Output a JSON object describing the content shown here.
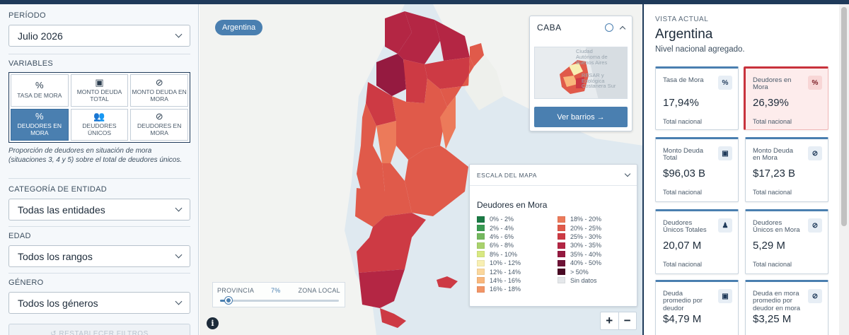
{
  "sidebar": {
    "periodo_label": "PERÍODO",
    "periodo_value": "Julio 2026",
    "variables_label": "VARIABLES",
    "variables": [
      {
        "icon": "percent-icon",
        "glyph": "%",
        "label": "TASA DE MORA",
        "active": false
      },
      {
        "icon": "money-icon",
        "glyph": "▣",
        "label": "MONTO DEUDA TOTAL",
        "active": false
      },
      {
        "icon": "money-off-icon",
        "glyph": "⊘",
        "label": "MONTO DEUDA EN MORA",
        "active": false
      },
      {
        "icon": "percent-icon",
        "glyph": "%",
        "label": "DEUDORES EN MORA",
        "active": true
      },
      {
        "icon": "users-icon",
        "glyph": "👥",
        "label": "DEUDORES ÚNICOS",
        "active": false
      },
      {
        "icon": "user-off-icon",
        "glyph": "⊘",
        "label": "DEUDORES EN MORA",
        "active": false
      }
    ],
    "description": "Proporción de deudores en situación de mora (situaciones 3, 4 y 5) sobre el total de deudores únicos.",
    "entidad_label": "CATEGORÍA DE ENTIDAD",
    "entidad_value": "Todas las entidades",
    "edad_label": "EDAD",
    "edad_value": "Todos los rangos",
    "genero_label": "GÉNERO",
    "genero_value": "Todos los géneros",
    "reset_label": "↺ RESTABLECER FILTROS"
  },
  "map": {
    "chip": "Argentina",
    "caba": {
      "title": "CABA",
      "button": "Ver barrios  →",
      "minimap_text": [
        "Ciudad",
        "Autónoma de",
        "Buenos Aires",
        "RESAR y",
        "Ecológica",
        "Costanera Sur"
      ]
    },
    "legend": {
      "header": "ESCALA DEL MAPA",
      "title": "Deudores en Mora",
      "left": [
        {
          "label": "0% - 2%",
          "color": "#1b7a45"
        },
        {
          "label": "2% - 4%",
          "color": "#3a9a52"
        },
        {
          "label": "4% - 6%",
          "color": "#74b85e"
        },
        {
          "label": "6% - 8%",
          "color": "#a9d26c"
        },
        {
          "label": "8% - 10%",
          "color": "#d8e882"
        },
        {
          "label": "10% - 12%",
          "color": "#f8efb2"
        },
        {
          "label": "12% - 14%",
          "color": "#fbd79c"
        },
        {
          "label": "14% - 16%",
          "color": "#f9b77c"
        },
        {
          "label": "16% - 18%",
          "color": "#f29566"
        }
      ],
      "right": [
        {
          "label": "18% - 20%",
          "color": "#ec7a5a"
        },
        {
          "label": "20% - 25%",
          "color": "#e05a4a"
        },
        {
          "label": "25% - 30%",
          "color": "#cd3a44"
        },
        {
          "label": "30% - 35%",
          "color": "#b42644"
        },
        {
          "label": "35% - 40%",
          "color": "#951a40"
        },
        {
          "label": "40% - 50%",
          "color": "#6e1236"
        },
        {
          "label": "> 50%",
          "color": "#4a0a24"
        },
        {
          "label": "Sin datos",
          "color": "#e4e7ea"
        }
      ]
    },
    "slider": {
      "left": "PROVINCIA",
      "value_label": "7%",
      "right": "ZONA LOCAL",
      "value": 0.07
    },
    "info": "i",
    "zoom_in": "+",
    "zoom_out": "−"
  },
  "right": {
    "title": "VISTA ACTUAL",
    "name": "Argentina",
    "subtitle": "Nivel nacional agregado.",
    "cards": [
      {
        "label": "Tasa de Mora",
        "value": "17,94%",
        "foot": "Total nacional",
        "icon": "percent-icon",
        "glyph": "%",
        "highlight": false
      },
      {
        "label": "Deudores en Mora",
        "value": "26,39%",
        "foot": "Total nacional",
        "icon": "percent-icon",
        "glyph": "%",
        "highlight": true
      },
      {
        "label": "Monto Deuda Total",
        "value": "$96,03 B",
        "foot": "Total nacional",
        "icon": "money-icon",
        "glyph": "▣",
        "highlight": false
      },
      {
        "label": "Monto Deuda en Mora",
        "value": "$17,23 B",
        "foot": "Total nacional",
        "icon": "money-off-icon",
        "glyph": "⊘",
        "highlight": false
      },
      {
        "label": "Deudores Únicos Totales",
        "value": "20,07 M",
        "foot": "Total nacional",
        "icon": "users-icon",
        "glyph": "♟",
        "highlight": false
      },
      {
        "label": "Deudores Únicos en Mora",
        "value": "5,29 M",
        "foot": "Total nacional",
        "icon": "user-off-icon",
        "glyph": "⊘",
        "highlight": false
      },
      {
        "label": "Deuda promedio por deudor",
        "value": "$4,79 M",
        "foot": "",
        "icon": "money-icon",
        "glyph": "▣",
        "highlight": false
      },
      {
        "label": "Deuda en mora promedio por deudor en mora",
        "value": "$3,25 M",
        "foot": "",
        "icon": "money-off-icon",
        "glyph": "⊘",
        "highlight": false
      }
    ]
  }
}
